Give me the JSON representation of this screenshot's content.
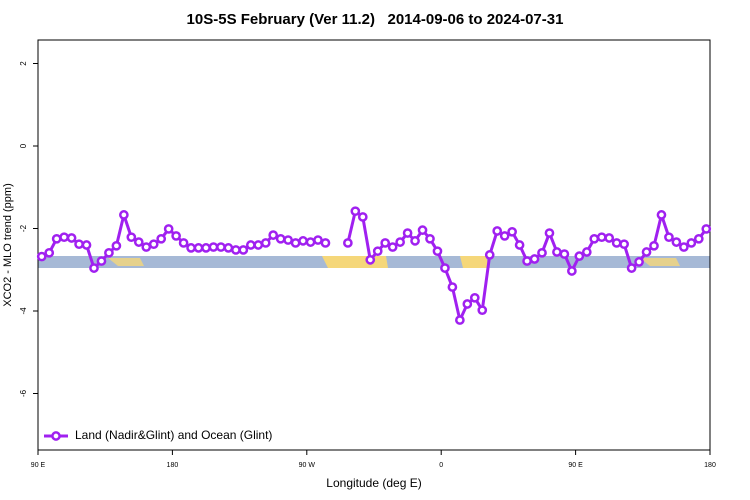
{
  "chart_data": {
    "type": "line",
    "title": "10S-5S February (Ver 11.2)   2014-09-06 to 2024-07-31",
    "x_label": "Longitude (deg E)",
    "y_label": "XCO2 - MLO trend (ppm)",
    "x": [
      92.5,
      97.5,
      102.5,
      107.5,
      112.5,
      117.5,
      122.5,
      127.5,
      132.5,
      137.5,
      142.5,
      147.5,
      152.5,
      157.5,
      162.5,
      167.5,
      172.5,
      177.5,
      182.5,
      187.5,
      192.5,
      197.5,
      202.5,
      207.5,
      212.5,
      217.5,
      222.5,
      227.5,
      232.5,
      237.5,
      242.5,
      247.5,
      252.5,
      257.5,
      262.5,
      267.5,
      272.5,
      277.5,
      282.5,
      287.5,
      292.5,
      297.5,
      302.5,
      307.5,
      312.5,
      317.5,
      322.5,
      327.5,
      332.5,
      337.5,
      342.5,
      347.5,
      352.5,
      357.5,
      362.5,
      367.5,
      372.5,
      377.5,
      382.5,
      387.5,
      392.5,
      397.5,
      402.5,
      407.5,
      412.5,
      417.5,
      422.5,
      427.5,
      432.5,
      437.5,
      442.5,
      447.5,
      452.5,
      457.5,
      462.5,
      467.5,
      472.5,
      477.5,
      482.5,
      487.5,
      492.5,
      497.5,
      502.5,
      507.5,
      512.5,
      517.5,
      522.5,
      527.5,
      532.5,
      537.5
    ],
    "series": [
      {
        "name": "Land (Nadir&Glint) and Ocean (Glint)",
        "color": "#a020f0",
        "values": [
          -2.68,
          -2.59,
          -2.25,
          -2.21,
          -2.23,
          -2.38,
          -2.4,
          -2.96,
          -2.79,
          -2.59,
          -2.42,
          -1.67,
          -2.21,
          -2.33,
          -2.45,
          -2.38,
          -2.25,
          -2.01,
          -2.18,
          -2.35,
          -2.47,
          -2.47,
          -2.47,
          -2.45,
          -2.45,
          -2.47,
          -2.52,
          -2.52,
          -2.4,
          -2.4,
          -2.35,
          -2.16,
          -2.25,
          -2.28,
          -2.35,
          -2.3,
          -2.33,
          -2.28,
          -2.35,
          null,
          null,
          -2.35,
          -1.58,
          -1.72,
          -2.76,
          -2.55,
          -2.35,
          -2.45,
          -2.33,
          -2.11,
          -2.3,
          -2.04,
          -2.25,
          -2.55,
          -2.96,
          -3.42,
          -4.22,
          -3.83,
          -3.68,
          -3.98,
          -2.64,
          -2.06,
          -2.18,
          -2.08,
          -2.4,
          -2.79,
          -2.74,
          -2.59,
          -2.11,
          -2.57,
          -2.62,
          -3.03,
          -2.67,
          -2.57,
          -2.25,
          -2.21,
          -2.23,
          -2.35,
          -2.38,
          -2.96,
          -2.81,
          -2.57,
          -2.42,
          -1.67,
          -2.21,
          -2.33,
          -2.45,
          -2.35,
          -2.25,
          -2.01
        ]
      }
    ],
    "xlim": [
      90,
      540
    ],
    "xticks": [
      {
        "value": 90,
        "label": "90 E"
      },
      {
        "value": 180,
        "label": "180"
      },
      {
        "value": 270,
        "label": "90 W"
      },
      {
        "value": 360,
        "label": "0"
      },
      {
        "value": 450,
        "label": "90 E"
      },
      {
        "value": 540,
        "label": "180"
      }
    ],
    "ylim": [
      -7.37,
      2.57
    ],
    "yticks": [
      -6,
      -4,
      -2,
      0,
      2
    ],
    "legend": "bottom-left"
  }
}
